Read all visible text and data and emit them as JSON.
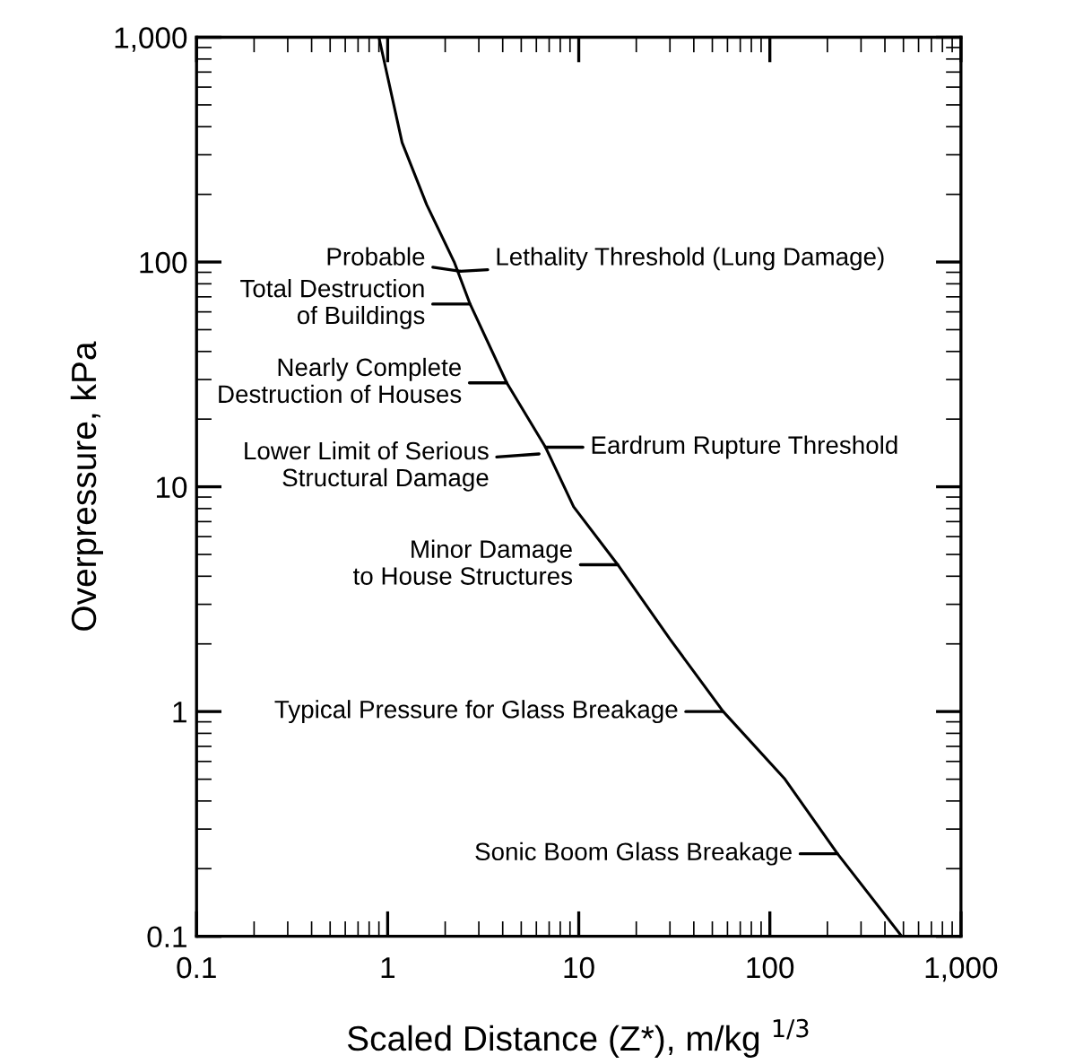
{
  "chart_data": {
    "type": "line",
    "xlabel": "Scaled Distance (Z*), m/kg $^{1/3}$",
    "ylabel": "Overpressure, kPa",
    "x": [
      0.9,
      1.19,
      1.6,
      2.23,
      2.7,
      4.2,
      6.7,
      9.4,
      16,
      30,
      57,
      120,
      226,
      490
    ],
    "series": [
      {
        "color": "#000000",
        "values": [
          1000,
          340,
          180,
          100,
          65,
          29,
          15,
          8.15,
          4.5,
          2.1,
          1,
          0.5,
          0.233,
          0.1
        ]
      }
    ],
    "log": "xy",
    "xlim": [
      0.1,
      1000
    ],
    "ylim": [
      0.1,
      1000
    ],
    "xticks": [
      {
        "value": 0.1,
        "label": "0.1"
      },
      {
        "value": 1,
        "label": "1"
      },
      {
        "value": 10,
        "label": "10"
      },
      {
        "value": 100,
        "label": "100"
      },
      {
        "value": 1000,
        "label": "1,000"
      }
    ],
    "yticks": [
      {
        "value": 0.1,
        "label": "0.1"
      },
      {
        "value": 1,
        "label": "1"
      },
      {
        "value": 10,
        "label": "10"
      },
      {
        "value": 100,
        "label": "100"
      },
      {
        "value": 1000,
        "label": "1,000"
      }
    ],
    "grid": false,
    "marker": "none",
    "line_style": "solid",
    "annotations": [
      {
        "text": "Probable",
        "x": 2.4,
        "y": 91
      },
      {
        "text": "Lethality Threshold (Lung Damage)",
        "x": 2.4,
        "y": 91
      },
      {
        "text": "Total Destruction\nof Buildings",
        "x": 2.7,
        "y": 65
      },
      {
        "text": "Nearly Complete\nDestruction of Houses",
        "x": 4.2,
        "y": 29
      },
      {
        "text": "Eardrum Rupture Threshold",
        "x": 6.7,
        "y": 15
      },
      {
        "text": "Lower Limit of Serious\nStructural Damage",
        "x": 6.2,
        "y": 14
      },
      {
        "text": "Minor Damage\nto House Structures",
        "x": 16,
        "y": 4.5
      },
      {
        "text": "Typical Pressure for Glass Breakage",
        "x": 57,
        "y": 1
      },
      {
        "text": "Sonic Boom Glass Breakage",
        "x": 226,
        "y": 0.233
      }
    ]
  }
}
